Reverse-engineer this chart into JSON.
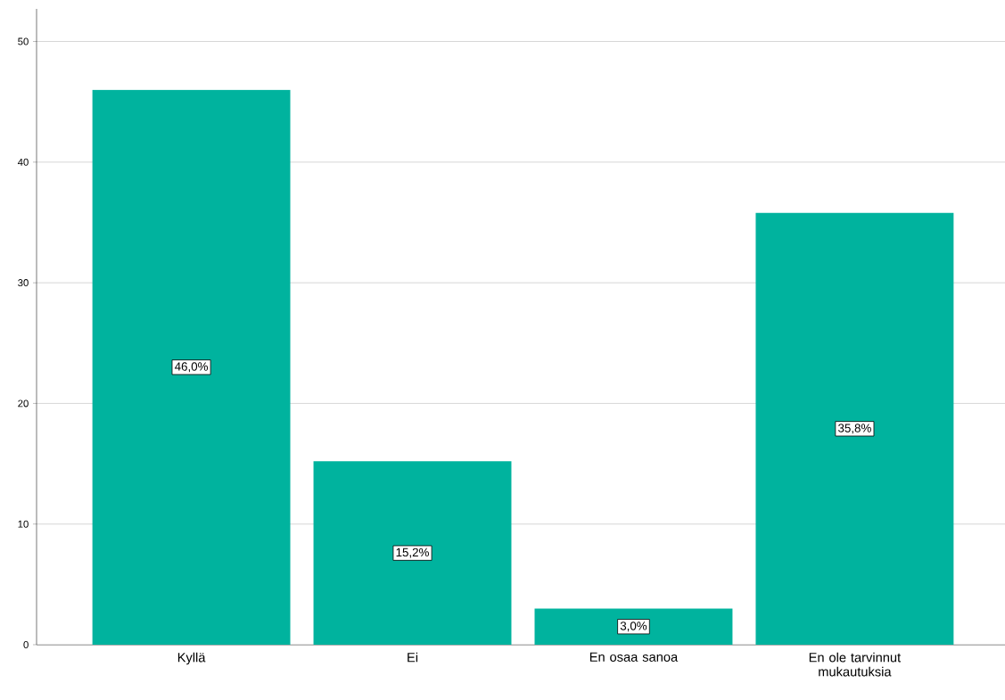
{
  "chart_data": {
    "type": "bar",
    "categories": [
      "Kyllä",
      "Ei",
      "En osaa sanoa",
      "En ole tarvinnut mukautuksia"
    ],
    "values": [
      46.0,
      15.2,
      3.0,
      35.8
    ],
    "value_labels": [
      "46,0%",
      "15,2%",
      "3,0%",
      "35,8%"
    ],
    "color": "#00b39e",
    "ylim": [
      0,
      52.7
    ],
    "yticks": [
      0,
      10,
      20,
      30,
      40,
      50
    ],
    "grid": "y"
  }
}
